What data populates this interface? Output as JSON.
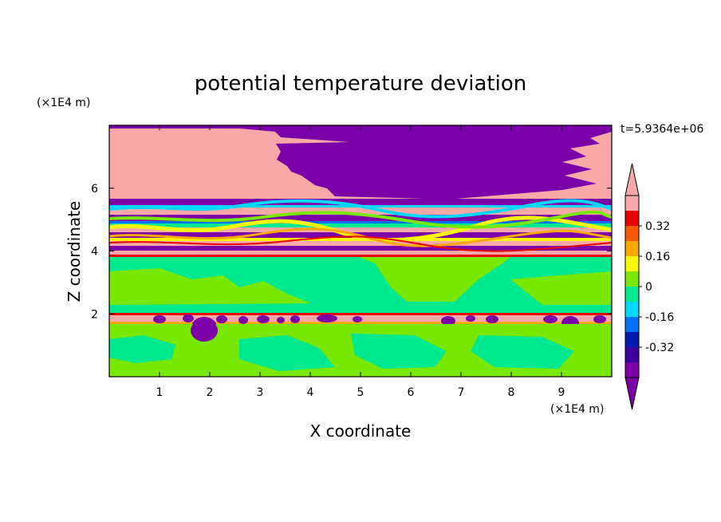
{
  "chart_data": {
    "type": "heatmap",
    "title": "potential temperature deviation",
    "xlabel": "X coordinate",
    "ylabel": "Z coordinate",
    "x_unit": "(×1E4 m)",
    "y_unit": "(×1E4 m)",
    "time_label": "t=5.9364e+06",
    "xlim": [
      0,
      10
    ],
    "ylim": [
      0,
      8
    ],
    "x_ticks": [
      "1",
      "2",
      "3",
      "4",
      "5",
      "6",
      "7",
      "8",
      "9"
    ],
    "y_ticks": [
      "2",
      "4",
      "6"
    ],
    "colorbar": {
      "levels": [
        -0.48,
        -0.4,
        -0.32,
        -0.24,
        -0.16,
        -0.08,
        0,
        0.08,
        0.16,
        0.24,
        0.32,
        0.4,
        0.48
      ],
      "labels": [
        "-0.32",
        "-0.16",
        "0",
        "0.16",
        "0.32"
      ],
      "colors": [
        "#7b00a8",
        "#3c00a0",
        "#0018b4",
        "#0070ff",
        "#00d8ff",
        "#00e890",
        "#78e800",
        "#f8f800",
        "#f8a800",
        "#f85800",
        "#e80000",
        "#f8a8a8"
      ],
      "extend": "both"
    },
    "colors": {
      "pink": "#f8a8a8",
      "purple": "#7b00a8",
      "green": "#78e800",
      "teal": "#00e890",
      "cyan": "#00d8ff",
      "blue": "#0070ff",
      "yellow": "#f8f800",
      "orange": "#f8a800",
      "red": "#e80000"
    }
  }
}
